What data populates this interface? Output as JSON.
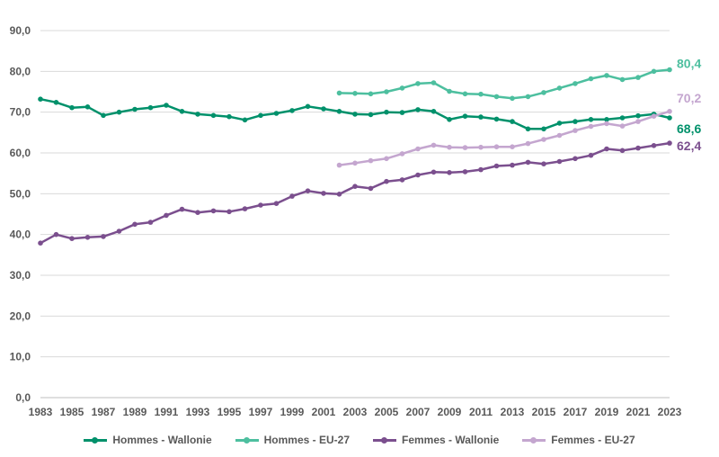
{
  "chart_data": {
    "type": "line",
    "title": "",
    "xlabel": "",
    "ylabel": "",
    "ylim": [
      0,
      90
    ],
    "yticks": [
      "0,0",
      "10,0",
      "20,0",
      "30,0",
      "40,0",
      "50,0",
      "60,0",
      "70,0",
      "80,0",
      "90,0"
    ],
    "xticks": [
      "1983",
      "1985",
      "1987",
      "1989",
      "1991",
      "1993",
      "1995",
      "1997",
      "1999",
      "2001",
      "2003",
      "2005",
      "2007",
      "2009",
      "2011",
      "2013",
      "2015",
      "2017",
      "2019",
      "2021",
      "2023"
    ],
    "grid": true,
    "legend_position": "bottom",
    "series": [
      {
        "name": "Hommes - Wallonie",
        "color": "#00916b",
        "end_label": "68,6",
        "x": [
          1983,
          1984,
          1985,
          1986,
          1987,
          1988,
          1989,
          1990,
          1991,
          1992,
          1993,
          1994,
          1995,
          1996,
          1997,
          1998,
          1999,
          2000,
          2001,
          2002,
          2003,
          2004,
          2005,
          2006,
          2007,
          2008,
          2009,
          2010,
          2011,
          2012,
          2013,
          2014,
          2015,
          2016,
          2017,
          2018,
          2019,
          2020,
          2021,
          2022,
          2023
        ],
        "y": [
          73.2,
          72.4,
          71.1,
          71.3,
          69.2,
          70.0,
          70.7,
          71.1,
          71.7,
          70.2,
          69.5,
          69.2,
          68.9,
          68.1,
          69.2,
          69.7,
          70.4,
          71.4,
          70.8,
          70.2,
          69.5,
          69.4,
          70.0,
          69.9,
          70.6,
          70.2,
          68.2,
          69.0,
          68.8,
          68.3,
          67.7,
          65.9,
          65.9,
          67.3,
          67.7,
          68.2,
          68.2,
          68.6,
          69.1,
          69.5,
          68.6
        ]
      },
      {
        "name": "Hommes - EU-27",
        "color": "#4dbf9f",
        "end_label": "80,4",
        "x": [
          2002,
          2003,
          2004,
          2005,
          2006,
          2007,
          2008,
          2009,
          2010,
          2011,
          2012,
          2013,
          2014,
          2015,
          2016,
          2017,
          2018,
          2019,
          2020,
          2021,
          2022,
          2023
        ],
        "y": [
          74.7,
          74.6,
          74.5,
          75.0,
          75.9,
          77.0,
          77.2,
          75.1,
          74.5,
          74.4,
          73.8,
          73.4,
          73.8,
          74.8,
          75.9,
          77.0,
          78.2,
          79.0,
          78.0,
          78.5,
          80.0,
          80.4
        ]
      },
      {
        "name": "Femmes - Wallonie",
        "color": "#7b4f8e",
        "end_label": "62,4",
        "x": [
          1983,
          1984,
          1985,
          1986,
          1987,
          1988,
          1989,
          1990,
          1991,
          1992,
          1993,
          1994,
          1995,
          1996,
          1997,
          1998,
          1999,
          2000,
          2001,
          2002,
          2003,
          2004,
          2005,
          2006,
          2007,
          2008,
          2009,
          2010,
          2011,
          2012,
          2013,
          2014,
          2015,
          2016,
          2017,
          2018,
          2019,
          2020,
          2021,
          2022,
          2023
        ],
        "y": [
          37.9,
          40.0,
          39.0,
          39.3,
          39.5,
          40.8,
          42.5,
          43.0,
          44.7,
          46.2,
          45.4,
          45.8,
          45.6,
          46.3,
          47.2,
          47.6,
          49.4,
          50.7,
          50.1,
          49.9,
          51.8,
          51.3,
          53.0,
          53.4,
          54.6,
          55.3,
          55.2,
          55.4,
          55.9,
          56.8,
          57.0,
          57.7,
          57.3,
          57.9,
          58.6,
          59.4,
          61.0,
          60.6,
          61.2,
          61.8,
          62.4
        ]
      },
      {
        "name": "Femmes - EU-27",
        "color": "#c4a6cf",
        "end_label": "70,2",
        "x": [
          2002,
          2003,
          2004,
          2005,
          2006,
          2007,
          2008,
          2009,
          2010,
          2011,
          2012,
          2013,
          2014,
          2015,
          2016,
          2017,
          2018,
          2019,
          2020,
          2021,
          2022,
          2023
        ],
        "y": [
          57.0,
          57.5,
          58.1,
          58.6,
          59.8,
          61.0,
          61.9,
          61.4,
          61.3,
          61.4,
          61.5,
          61.5,
          62.3,
          63.3,
          64.3,
          65.5,
          66.5,
          67.2,
          66.6,
          67.7,
          69.0,
          70.2
        ]
      }
    ]
  }
}
